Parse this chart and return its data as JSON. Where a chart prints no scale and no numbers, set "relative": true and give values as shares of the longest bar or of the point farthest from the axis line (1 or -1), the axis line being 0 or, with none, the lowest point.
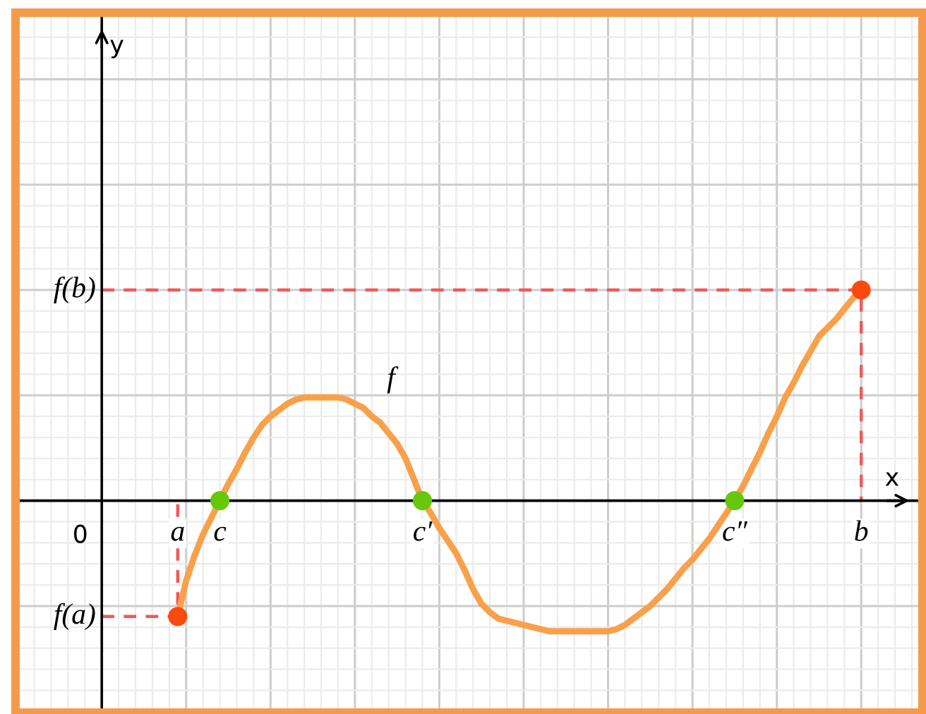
{
  "chart_data": {
    "type": "line",
    "xlabel": "x",
    "relative": true,
    "grid": true,
    "categories": [
      null,
      null,
      null,
      null,
      null,
      null,
      null,
      null,
      null,
      "a",
      null,
      null,
      null,
      null,
      "c",
      null,
      null,
      null,
      null,
      null,
      null,
      null,
      null,
      null,
      null,
      null,
      null,
      null,
      null,
      null,
      null,
      null,
      null,
      null,
      null,
      null,
      null,
      null,
      "c′",
      null,
      null,
      null,
      null,
      null,
      null,
      null,
      null,
      null,
      null,
      null,
      null,
      null,
      null,
      null,
      null,
      null,
      null,
      null,
      null,
      null,
      null,
      null,
      null,
      null,
      null,
      null,
      null,
      null,
      null,
      null,
      null,
      null,
      null,
      null,
      null,
      "c″",
      null,
      null,
      null,
      null,
      null,
      null,
      null,
      null,
      null,
      null,
      null,
      null,
      null,
      null,
      "b"
    ],
    "annotations": [
      "0",
      "y"
    ],
    "series": [
      {
        "name": "f",
        "color": "#f9a04a",
        "line_style": "solid",
        "values": [
          null,
          null,
          null,
          null,
          null,
          null,
          null,
          null,
          null,
          -0.55,
          -0.38,
          -0.26,
          -0.16,
          -0.08,
          0,
          0.08,
          0.15,
          0.23,
          0.3,
          0.36,
          0.4,
          0.43,
          0.46,
          0.48,
          0.49,
          0.49,
          0.49,
          0.49,
          0.49,
          0.48,
          0.46,
          0.44,
          0.4,
          0.37,
          0.32,
          0.27,
          0.2,
          0.1,
          0,
          -0.06,
          -0.13,
          -0.19,
          -0.25,
          -0.33,
          -0.42,
          -0.49,
          -0.53,
          -0.56,
          -0.57,
          -0.58,
          -0.59,
          -0.6,
          -0.61,
          -0.62,
          -0.62,
          -0.62,
          -0.62,
          -0.62,
          -0.62,
          -0.62,
          -0.62,
          -0.61,
          -0.59,
          -0.56,
          -0.53,
          -0.5,
          -0.46,
          -0.42,
          -0.37,
          -0.32,
          -0.28,
          -0.23,
          -0.18,
          -0.12,
          -0.06,
          0,
          0.07,
          0.15,
          0.23,
          0.32,
          0.4,
          0.49,
          0.56,
          0.64,
          0.71,
          0.78,
          0.82,
          0.86,
          0.91,
          0.96,
          1
        ]
      },
      {
        "type": "step",
        "name": "f(a)",
        "color": "#ef5a5a",
        "line_style": "dashed",
        "values": [
          -0.55,
          -0.55,
          -0.55,
          -0.55,
          -0.55,
          -0.55,
          -0.55,
          -0.55,
          -0.55,
          0,
          null,
          null,
          null,
          null,
          null,
          null,
          null,
          null,
          null,
          null,
          null,
          null,
          null,
          null,
          null,
          null,
          null,
          null,
          null,
          null,
          null,
          null,
          null,
          null,
          null,
          null,
          null,
          null,
          null,
          null,
          null,
          null,
          null,
          null,
          null,
          null,
          null,
          null,
          null,
          null,
          null,
          null,
          null,
          null,
          null,
          null,
          null,
          null,
          null,
          null,
          null,
          null,
          null,
          null,
          null,
          null,
          null,
          null,
          null,
          null,
          null,
          null,
          null,
          null,
          null,
          null,
          null,
          null,
          null,
          null,
          null,
          null,
          null,
          null,
          null,
          null,
          null,
          null,
          null,
          null,
          null
        ]
      },
      {
        "type": "step",
        "name": "f(b)",
        "color": "#ef5a5a",
        "line_style": "dashed",
        "values": [
          1,
          1,
          1,
          1,
          1,
          1,
          1,
          1,
          1,
          1,
          1,
          1,
          1,
          1,
          1,
          1,
          1,
          1,
          1,
          1,
          1,
          1,
          1,
          1,
          1,
          1,
          1,
          1,
          1,
          1,
          1,
          1,
          1,
          1,
          1,
          1,
          1,
          1,
          1,
          1,
          1,
          1,
          1,
          1,
          1,
          1,
          1,
          1,
          1,
          1,
          1,
          1,
          1,
          1,
          1,
          1,
          1,
          1,
          1,
          1,
          1,
          1,
          1,
          1,
          1,
          1,
          1,
          1,
          1,
          1,
          1,
          1,
          1,
          1,
          1,
          1,
          1,
          1,
          1,
          1,
          1,
          1,
          1,
          1,
          1,
          1,
          1,
          1,
          1,
          1,
          0
        ]
      },
      {
        "type": "scatter",
        "color": "#fa4a10",
        "marker": "circle",
        "values": [
          null,
          null,
          null,
          null,
          null,
          null,
          null,
          null,
          null,
          -0.55,
          null,
          null,
          null,
          null,
          null,
          null,
          null,
          null,
          null,
          null,
          null,
          null,
          null,
          null,
          null,
          null,
          null,
          null,
          null,
          null,
          null,
          null,
          null,
          null,
          null,
          null,
          null,
          null,
          null,
          null,
          null,
          null,
          null,
          null,
          null,
          null,
          null,
          null,
          null,
          null,
          null,
          null,
          null,
          null,
          null,
          null,
          null,
          null,
          null,
          null,
          null,
          null,
          null,
          null,
          null,
          null,
          null,
          null,
          null,
          null,
          null,
          null,
          null,
          null,
          null,
          null,
          null,
          null,
          null,
          null,
          null,
          null,
          null,
          null,
          null,
          null,
          null,
          null,
          null,
          null,
          1
        ]
      },
      {
        "type": "scatter",
        "color": "#66c80a",
        "marker": "circle",
        "values": [
          null,
          null,
          null,
          null,
          null,
          null,
          null,
          null,
          null,
          null,
          null,
          null,
          null,
          null,
          0,
          null,
          null,
          null,
          null,
          null,
          null,
          null,
          null,
          null,
          null,
          null,
          null,
          null,
          null,
          null,
          null,
          null,
          null,
          null,
          null,
          null,
          null,
          null,
          0,
          null,
          null,
          null,
          null,
          null,
          null,
          null,
          null,
          null,
          null,
          null,
          null,
          null,
          null,
          null,
          null,
          null,
          null,
          null,
          null,
          null,
          null,
          null,
          null,
          null,
          null,
          null,
          null,
          null,
          null,
          null,
          null,
          null,
          null,
          null,
          null,
          0,
          null,
          null,
          null,
          null,
          null,
          null,
          null,
          null,
          null,
          null,
          null,
          null,
          null,
          null,
          null
        ]
      }
    ]
  }
}
